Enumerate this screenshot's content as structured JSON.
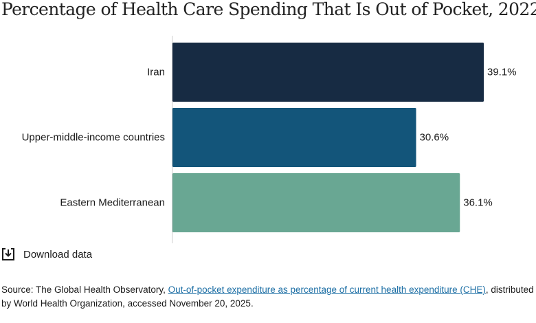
{
  "title": "Percentage of Health Care Spending That Is Out of Pocket, 2022",
  "download_label": "Download data",
  "icons": {
    "download": "download-icon"
  },
  "source": {
    "prefix": "Source: The Global Health Observatory, ",
    "link_text": "Out-of-pocket expenditure as percentage of current health expenditure (CHE)",
    "suffix": ", distributed by World Health Organization, accessed November 20, 2025."
  },
  "colors": {
    "link": "#1d6fa5",
    "axis": "#cccccc"
  },
  "chart_data": {
    "type": "bar",
    "orientation": "horizontal",
    "categories": [
      "Iran",
      "Upper-middle-income countries",
      "Eastern Mediterranean"
    ],
    "values": [
      39.1,
      30.6,
      36.1
    ],
    "value_labels": [
      "39.1%",
      "30.6%",
      "36.1%"
    ],
    "colors": [
      "#172b43",
      "#13557a",
      "#69a793"
    ],
    "xlim": [
      0,
      39.1
    ],
    "grid": false,
    "legend": "none"
  }
}
